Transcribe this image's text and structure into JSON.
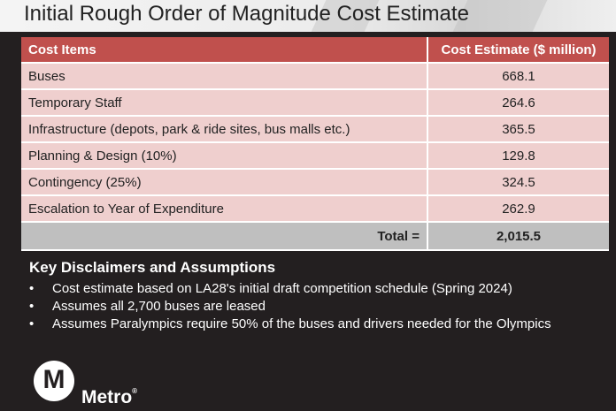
{
  "title": "Initial Rough Order of Magnitude Cost Estimate",
  "table": {
    "headers": [
      "Cost Items",
      "Cost Estimate ($ million)"
    ],
    "rows": [
      {
        "item": "Buses",
        "estimate": "668.1"
      },
      {
        "item": "Temporary Staff",
        "estimate": "264.6"
      },
      {
        "item": "Infrastructure (depots, park & ride sites, bus malls etc.)",
        "estimate": "365.5"
      },
      {
        "item": "Planning & Design (10%)",
        "estimate": "129.8"
      },
      {
        "item": "Contingency (25%)",
        "estimate": "324.5"
      },
      {
        "item": "Escalation to Year of Expenditure",
        "estimate": "262.9"
      }
    ],
    "total_label": "Total =",
    "total_value": "2,015.5"
  },
  "disclaimers": {
    "heading": "Key Disclaimers and Assumptions",
    "bullet": "•",
    "items": [
      "Cost estimate based on LA28's initial draft competition schedule (Spring 2024)",
      "Assumes all 2,700 buses are leased",
      "Assumes Paralympics require 50% of the buses and drivers needed for the Olympics"
    ]
  },
  "logo": {
    "mark": "M",
    "wordmark": "Metro",
    "trademark": "®"
  },
  "colors": {
    "header_red": "#c0504d",
    "row_pink": "#efcfce",
    "total_gray": "#bfbfbf",
    "background": "#231f20"
  }
}
